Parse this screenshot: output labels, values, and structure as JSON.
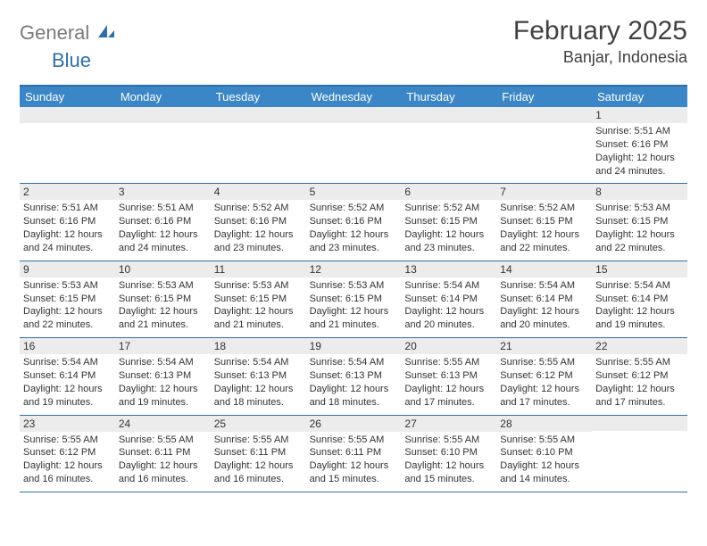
{
  "brand": {
    "grey": "General",
    "blue": "Blue"
  },
  "title": {
    "month": "February 2025",
    "location": "Banjar, Indonesia"
  },
  "colors": {
    "header_bar": "#3b86c6",
    "border": "#2f6fa8",
    "date_bg": "#ececec",
    "text": "#333333",
    "title_text": "#414141"
  },
  "day_names": [
    "Sunday",
    "Monday",
    "Tuesday",
    "Wednesday",
    "Thursday",
    "Friday",
    "Saturday"
  ],
  "weeks": [
    [
      {
        "date": "",
        "sunrise": "",
        "sunset": "",
        "daylight": ""
      },
      {
        "date": "",
        "sunrise": "",
        "sunset": "",
        "daylight": ""
      },
      {
        "date": "",
        "sunrise": "",
        "sunset": "",
        "daylight": ""
      },
      {
        "date": "",
        "sunrise": "",
        "sunset": "",
        "daylight": ""
      },
      {
        "date": "",
        "sunrise": "",
        "sunset": "",
        "daylight": ""
      },
      {
        "date": "",
        "sunrise": "",
        "sunset": "",
        "daylight": ""
      },
      {
        "date": "1",
        "sunrise": "Sunrise: 5:51 AM",
        "sunset": "Sunset: 6:16 PM",
        "daylight": "Daylight: 12 hours and 24 minutes."
      }
    ],
    [
      {
        "date": "2",
        "sunrise": "Sunrise: 5:51 AM",
        "sunset": "Sunset: 6:16 PM",
        "daylight": "Daylight: 12 hours and 24 minutes."
      },
      {
        "date": "3",
        "sunrise": "Sunrise: 5:51 AM",
        "sunset": "Sunset: 6:16 PM",
        "daylight": "Daylight: 12 hours and 24 minutes."
      },
      {
        "date": "4",
        "sunrise": "Sunrise: 5:52 AM",
        "sunset": "Sunset: 6:16 PM",
        "daylight": "Daylight: 12 hours and 23 minutes."
      },
      {
        "date": "5",
        "sunrise": "Sunrise: 5:52 AM",
        "sunset": "Sunset: 6:16 PM",
        "daylight": "Daylight: 12 hours and 23 minutes."
      },
      {
        "date": "6",
        "sunrise": "Sunrise: 5:52 AM",
        "sunset": "Sunset: 6:15 PM",
        "daylight": "Daylight: 12 hours and 23 minutes."
      },
      {
        "date": "7",
        "sunrise": "Sunrise: 5:52 AM",
        "sunset": "Sunset: 6:15 PM",
        "daylight": "Daylight: 12 hours and 22 minutes."
      },
      {
        "date": "8",
        "sunrise": "Sunrise: 5:53 AM",
        "sunset": "Sunset: 6:15 PM",
        "daylight": "Daylight: 12 hours and 22 minutes."
      }
    ],
    [
      {
        "date": "9",
        "sunrise": "Sunrise: 5:53 AM",
        "sunset": "Sunset: 6:15 PM",
        "daylight": "Daylight: 12 hours and 22 minutes."
      },
      {
        "date": "10",
        "sunrise": "Sunrise: 5:53 AM",
        "sunset": "Sunset: 6:15 PM",
        "daylight": "Daylight: 12 hours and 21 minutes."
      },
      {
        "date": "11",
        "sunrise": "Sunrise: 5:53 AM",
        "sunset": "Sunset: 6:15 PM",
        "daylight": "Daylight: 12 hours and 21 minutes."
      },
      {
        "date": "12",
        "sunrise": "Sunrise: 5:53 AM",
        "sunset": "Sunset: 6:15 PM",
        "daylight": "Daylight: 12 hours and 21 minutes."
      },
      {
        "date": "13",
        "sunrise": "Sunrise: 5:54 AM",
        "sunset": "Sunset: 6:14 PM",
        "daylight": "Daylight: 12 hours and 20 minutes."
      },
      {
        "date": "14",
        "sunrise": "Sunrise: 5:54 AM",
        "sunset": "Sunset: 6:14 PM",
        "daylight": "Daylight: 12 hours and 20 minutes."
      },
      {
        "date": "15",
        "sunrise": "Sunrise: 5:54 AM",
        "sunset": "Sunset: 6:14 PM",
        "daylight": "Daylight: 12 hours and 19 minutes."
      }
    ],
    [
      {
        "date": "16",
        "sunrise": "Sunrise: 5:54 AM",
        "sunset": "Sunset: 6:14 PM",
        "daylight": "Daylight: 12 hours and 19 minutes."
      },
      {
        "date": "17",
        "sunrise": "Sunrise: 5:54 AM",
        "sunset": "Sunset: 6:13 PM",
        "daylight": "Daylight: 12 hours and 19 minutes."
      },
      {
        "date": "18",
        "sunrise": "Sunrise: 5:54 AM",
        "sunset": "Sunset: 6:13 PM",
        "daylight": "Daylight: 12 hours and 18 minutes."
      },
      {
        "date": "19",
        "sunrise": "Sunrise: 5:54 AM",
        "sunset": "Sunset: 6:13 PM",
        "daylight": "Daylight: 12 hours and 18 minutes."
      },
      {
        "date": "20",
        "sunrise": "Sunrise: 5:55 AM",
        "sunset": "Sunset: 6:13 PM",
        "daylight": "Daylight: 12 hours and 17 minutes."
      },
      {
        "date": "21",
        "sunrise": "Sunrise: 5:55 AM",
        "sunset": "Sunset: 6:12 PM",
        "daylight": "Daylight: 12 hours and 17 minutes."
      },
      {
        "date": "22",
        "sunrise": "Sunrise: 5:55 AM",
        "sunset": "Sunset: 6:12 PM",
        "daylight": "Daylight: 12 hours and 17 minutes."
      }
    ],
    [
      {
        "date": "23",
        "sunrise": "Sunrise: 5:55 AM",
        "sunset": "Sunset: 6:12 PM",
        "daylight": "Daylight: 12 hours and 16 minutes."
      },
      {
        "date": "24",
        "sunrise": "Sunrise: 5:55 AM",
        "sunset": "Sunset: 6:11 PM",
        "daylight": "Daylight: 12 hours and 16 minutes."
      },
      {
        "date": "25",
        "sunrise": "Sunrise: 5:55 AM",
        "sunset": "Sunset: 6:11 PM",
        "daylight": "Daylight: 12 hours and 16 minutes."
      },
      {
        "date": "26",
        "sunrise": "Sunrise: 5:55 AM",
        "sunset": "Sunset: 6:11 PM",
        "daylight": "Daylight: 12 hours and 15 minutes."
      },
      {
        "date": "27",
        "sunrise": "Sunrise: 5:55 AM",
        "sunset": "Sunset: 6:10 PM",
        "daylight": "Daylight: 12 hours and 15 minutes."
      },
      {
        "date": "28",
        "sunrise": "Sunrise: 5:55 AM",
        "sunset": "Sunset: 6:10 PM",
        "daylight": "Daylight: 12 hours and 14 minutes."
      },
      {
        "date": "",
        "sunrise": "",
        "sunset": "",
        "daylight": ""
      }
    ]
  ]
}
